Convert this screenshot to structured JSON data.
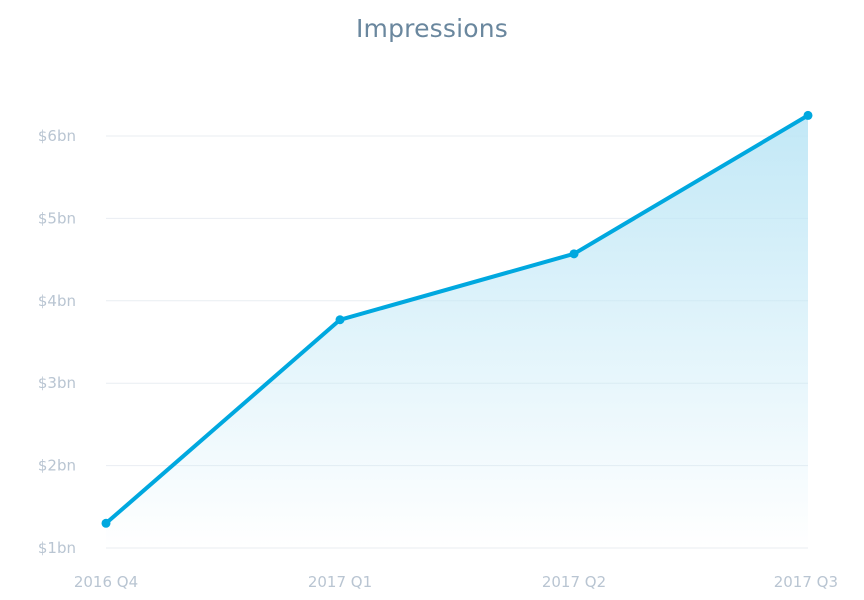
{
  "chart_data": {
    "type": "area",
    "title": "Impressions",
    "categories": [
      "2016 Q4",
      "2017 Q1",
      "2017 Q2",
      "2017 Q3"
    ],
    "values": [
      1.3,
      3.77,
      4.57,
      6.25
    ],
    "ylim": [
      1,
      6
    ],
    "yticks": [
      1,
      2,
      3,
      4,
      5,
      6
    ],
    "ytick_labels": [
      "$1bn",
      "$2bn",
      "$3bn",
      "$4bn",
      "$5bn",
      "$6bn"
    ],
    "grid": true,
    "colors": {
      "line": "#00a8df",
      "fill": "#bfe7f6",
      "grid": "#e9edf2",
      "tick_text": "#b9c5d2",
      "title": "#6a879e"
    }
  }
}
